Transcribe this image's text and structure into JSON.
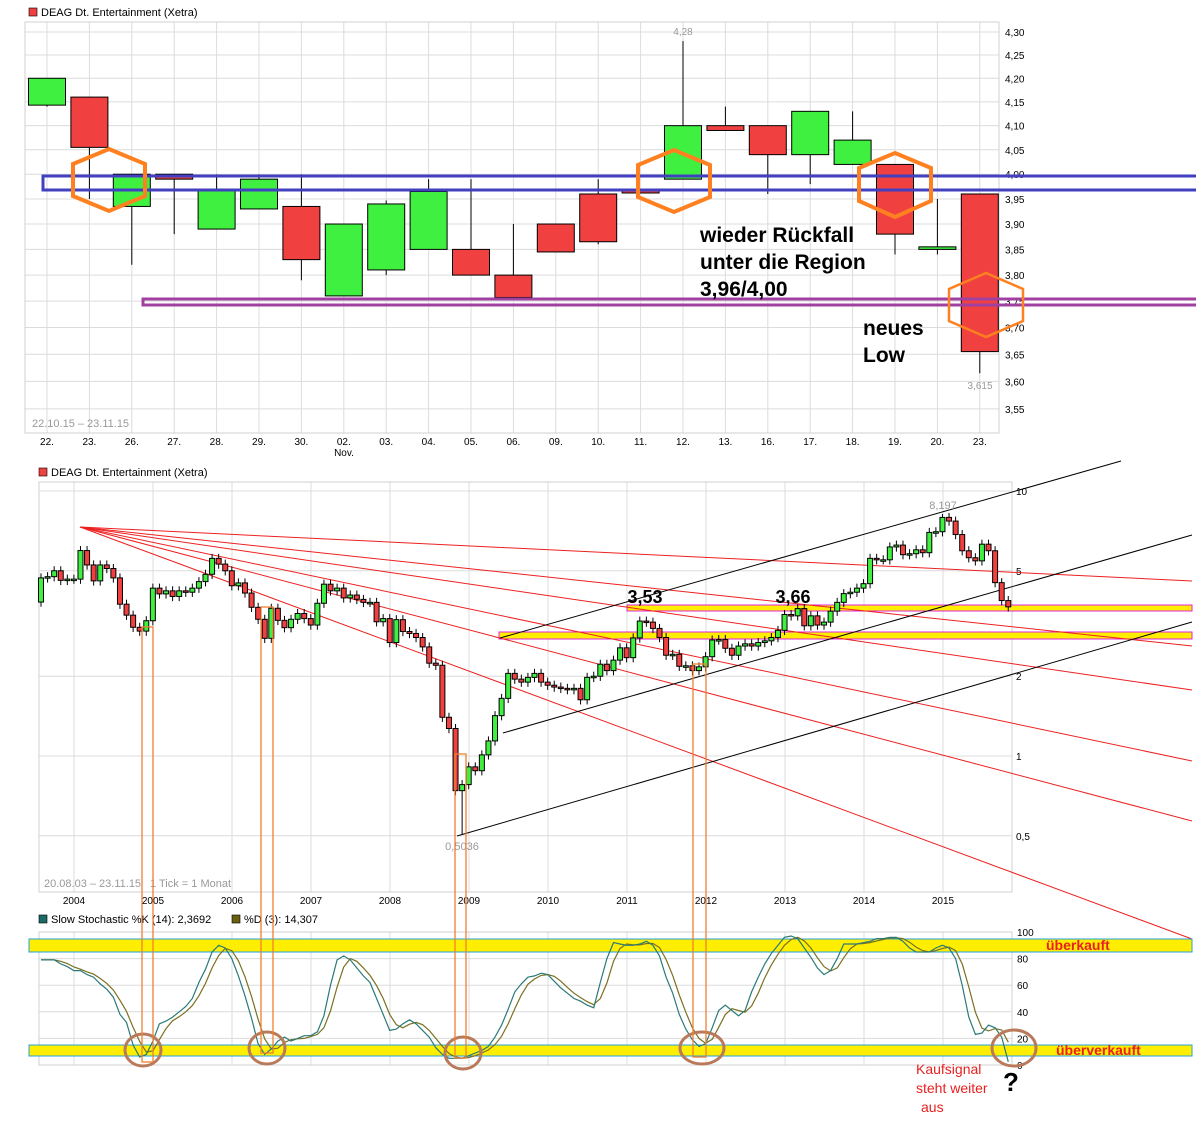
{
  "colors": {
    "up": "#40f040",
    "down": "#f04040",
    "stoch_k": "#2a7a78",
    "stoch_d": "#7a7020",
    "annotation_orange": "#ff8020",
    "support_blue": "#4040c0",
    "support_purple": "#a040a0",
    "band_yellow": "#ffee00",
    "band_border_magenta": "#e020e0",
    "band_border_blue": "#20a0e0",
    "circle_brown": "#b87a5a",
    "fan_red": "#ee2020"
  },
  "chart_data": [
    {
      "type": "candlestick",
      "title": "DEAG Dt. Entertainment (Xetra)",
      "range_label": "22.10.15 – 23.11.15",
      "y_scale": "log",
      "ylim": [
        3.52,
        4.32
      ],
      "grid": true,
      "y_ticks": [
        "4,30",
        "4,25",
        "4,20",
        "4,15",
        "4,10",
        "4,05",
        "4,00",
        "3,95",
        "3,90",
        "3,85",
        "3,80",
        "3,75",
        "3,70",
        "3,65",
        "3,60",
        "3,55"
      ],
      "y_tick_values": [
        4.3,
        4.25,
        4.2,
        4.15,
        4.1,
        4.05,
        4.0,
        3.95,
        3.9,
        3.85,
        3.8,
        3.75,
        3.7,
        3.65,
        3.6,
        3.55
      ],
      "categories": [
        "22.",
        "23.",
        "26.",
        "27.",
        "28.",
        "29.",
        "30.",
        "02.",
        "03.",
        "04.",
        "05.",
        "06.",
        "09.",
        "10.",
        "11.",
        "12.",
        "13.",
        "16.",
        "17.",
        "18.",
        "19.",
        "20.",
        "23."
      ],
      "month_label": "Nov.",
      "ohlc": [
        [
          4.143,
          4.2,
          4.14,
          4.2
        ],
        [
          4.16,
          4.16,
          3.95,
          4.055
        ],
        [
          3.935,
          4.0,
          3.82,
          4.0
        ],
        [
          4.0,
          4.0,
          3.88,
          3.99
        ],
        [
          3.89,
          4.0,
          3.89,
          3.97
        ],
        [
          3.93,
          4.0,
          3.93,
          3.99
        ],
        [
          3.935,
          4.0,
          3.79,
          3.83
        ],
        [
          3.76,
          3.9,
          3.76,
          3.9
        ],
        [
          3.81,
          3.947,
          3.8,
          3.94
        ],
        [
          3.85,
          3.99,
          3.85,
          3.965
        ],
        [
          3.85,
          3.99,
          3.8,
          3.8
        ],
        [
          3.8,
          3.9,
          3.757,
          3.757
        ],
        [
          3.9,
          3.9,
          3.845,
          3.845
        ],
        [
          3.96,
          3.99,
          3.86,
          3.865
        ],
        [
          3.967,
          3.967,
          3.962,
          3.962
        ],
        [
          3.99,
          4.28,
          3.99,
          4.1
        ],
        [
          4.1,
          4.14,
          4.09,
          4.09
        ],
        [
          4.1,
          4.1,
          3.96,
          4.04
        ],
        [
          4.04,
          4.13,
          3.98,
          4.13
        ],
        [
          4.02,
          4.13,
          4.02,
          4.07
        ],
        [
          4.02,
          4.02,
          3.84,
          3.88
        ],
        [
          3.85,
          3.95,
          3.84,
          3.855
        ],
        [
          3.96,
          3.96,
          3.615,
          3.655
        ]
      ],
      "high_label": "4,28",
      "low_label": "3,615",
      "annotations": {
        "support_zone_upper": [
          3.97,
          4.0
        ],
        "support_zone_lower": [
          3.74,
          3.755
        ],
        "text_1": [
          "wieder Rückfall",
          "unter die Region",
          "3,96/4,00"
        ],
        "text_2": [
          "neues",
          "Low"
        ]
      }
    },
    {
      "type": "candlestick",
      "title": "DEAG Dt. Entertainment (Xetra)",
      "range_label": "20.08.03 – 23.11.15",
      "tick_label": "1 Tick = 1 Monat",
      "y_scale": "log",
      "ylim": [
        0.45,
        11.5
      ],
      "grid": true,
      "y_ticks": [
        "10",
        "5",
        "2",
        "1",
        "0,5"
      ],
      "y_tick_values": [
        10,
        5,
        2,
        1,
        0.5
      ],
      "x_ticks": [
        "2004",
        "2005",
        "2006",
        "2007",
        "2008",
        "2009",
        "2010",
        "2011",
        "2012",
        "2013",
        "2014",
        "2015"
      ],
      "first_open": 3.81,
      "monthly_close": [
        4.7,
        4.75,
        5.0,
        4.6,
        4.65,
        4.65,
        5.96,
        5.26,
        4.58,
        5.26,
        5.1,
        4.7,
        3.74,
        3.4,
        3.06,
        2.96,
        3.24,
        4.3,
        4.09,
        4.2,
        4.0,
        4.2,
        4.15,
        4.3,
        4.55,
        4.85,
        5.57,
        5.3,
        5.0,
        4.39,
        4.5,
        4.12,
        3.64,
        3.28,
        2.78,
        3.61,
        3.25,
        3.05,
        3.28,
        3.45,
        3.3,
        3.12,
        3.77,
        4.45,
        4.2,
        4.3,
        3.95,
        4.05,
        3.9,
        3.8,
        3.8,
        3.21,
        3.3,
        2.68,
        3.27,
        2.95,
        2.9,
        2.8,
        2.58,
        2.24,
        2.2,
        1.4,
        1.27,
        0.74,
        0.78,
        0.91,
        0.88,
        1.01,
        1.14,
        1.42,
        1.65,
        2.05,
        1.95,
        1.9,
        1.98,
        2.05,
        1.9,
        1.85,
        1.82,
        1.8,
        1.78,
        1.8,
        1.63,
        1.98,
        2.0,
        2.22,
        2.1,
        2.3,
        2.56,
        2.35,
        2.79,
        3.23,
        3.2,
        3.03,
        2.8,
        2.4,
        2.42,
        2.18,
        2.19,
        2.1,
        2.17,
        2.37,
        2.74,
        2.75,
        2.55,
        2.4,
        2.6,
        2.65,
        2.6,
        2.68,
        2.72,
        2.8,
        2.98,
        3.42,
        3.38,
        3.6,
        3.1,
        3.38,
        3.12,
        3.2,
        3.52,
        3.8,
        4.1,
        4.15,
        4.3,
        4.47,
        5.57,
        5.5,
        5.5,
        6.15,
        6.25,
        5.75,
        5.8,
        6.0,
        5.85,
        6.98,
        7.02,
        7.95,
        7.7,
        6.85,
        5.95,
        5.6,
        5.45,
        6.3,
        5.95,
        4.51,
        3.86,
        3.655
      ],
      "all_time_high": 8.197,
      "all_time_high_label": "8,197",
      "all_time_low": 0.5036,
      "all_time_low_label": "0,5036",
      "resistance_labels": [
        "3,53",
        "3,66"
      ]
    },
    {
      "type": "line",
      "title": "",
      "ylim": [
        0,
        100
      ],
      "y_ticks": [
        "100",
        "80",
        "60",
        "40",
        "20",
        "0"
      ],
      "y_tick_values": [
        100,
        80,
        60,
        40,
        20,
        0
      ],
      "series": [
        {
          "name": "Slow Stochastic %K (14): 2,3692",
          "legend_value": 2.3692,
          "values": [
            79,
            79,
            79,
            76,
            74,
            71,
            71,
            68,
            66,
            61,
            57,
            51,
            38,
            32,
            15,
            6,
            8,
            18,
            31,
            33,
            36,
            40,
            44,
            50,
            62,
            72,
            85,
            90,
            88,
            80,
            67,
            52,
            35,
            16,
            8,
            12,
            18,
            21,
            18,
            20,
            22,
            22,
            25,
            37,
            60,
            79,
            82,
            79,
            73,
            67,
            62,
            50,
            38,
            26,
            27,
            31,
            34,
            31,
            26,
            21,
            13,
            8,
            5,
            5,
            5,
            7,
            9,
            11,
            14,
            21,
            30,
            42,
            55,
            61,
            66,
            67,
            69,
            68,
            63,
            58,
            54,
            50,
            48,
            45,
            43,
            62,
            80,
            92,
            91,
            90,
            90,
            91,
            93,
            90,
            82,
            66,
            54,
            38,
            27,
            19,
            14,
            16,
            28,
            41,
            45,
            41,
            37,
            41,
            55,
            66,
            76,
            84,
            90,
            96,
            97,
            95,
            88,
            81,
            73,
            68,
            71,
            80,
            91,
            91,
            91,
            92,
            93,
            95,
            95,
            96,
            96,
            93,
            88,
            85,
            85,
            85,
            88,
            90,
            88,
            80,
            60,
            36,
            23,
            24,
            30,
            28,
            21,
            2.3692
          ]
        },
        {
          "name": "%D (3): 14,307",
          "legend_value": 14.307
        }
      ],
      "zones": {
        "overbought_label": "überkauft",
        "oversold_label": "überverkauft"
      },
      "annotation_text": [
        "Kaufsignal",
        "steht weiter",
        "aus"
      ],
      "question_mark": "?"
    }
  ]
}
